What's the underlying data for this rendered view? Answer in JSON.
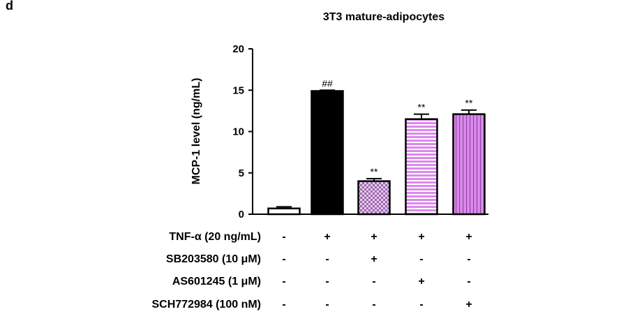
{
  "panel_label": "d",
  "chart_data": {
    "type": "bar",
    "title": "3T3 mature-adipocytes",
    "xlabel": "",
    "ylabel": "MCP-1 level (ng/mL)",
    "ylim": [
      0,
      20
    ],
    "yticks": [
      "0",
      "5",
      "10",
      "15",
      "20"
    ],
    "values": [
      0.7,
      14.9,
      4.0,
      11.5,
      12.1
    ],
    "errors": [
      0.2,
      0.1,
      0.3,
      0.6,
      0.5
    ],
    "significance": [
      "",
      "##",
      "**",
      "**",
      "**"
    ],
    "bar_fills": [
      "white",
      "black",
      "checker",
      "hstripes",
      "vstripes"
    ],
    "colors": {
      "bar_pink": "#dd88ee",
      "bar_edge": "#000000",
      "checker_light": "#e8c8f0",
      "checker_dark": "#9a6aa8"
    },
    "treatments": [
      {
        "label": "TNF-α (20 ng/mL)",
        "marks": [
          "-",
          "+",
          "+",
          "+",
          "+"
        ]
      },
      {
        "label": "SB203580 (10 μM)",
        "marks": [
          "-",
          "-",
          "+",
          "-",
          "-"
        ]
      },
      {
        "label": "AS601245 (1 μM)",
        "marks": [
          "-",
          "-",
          "-",
          "+",
          "-"
        ]
      },
      {
        "label": "SCH772984 (100 nM)",
        "marks": [
          "-",
          "-",
          "-",
          "-",
          "+"
        ]
      }
    ]
  }
}
